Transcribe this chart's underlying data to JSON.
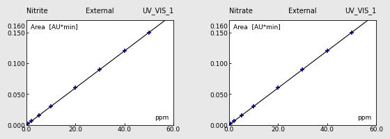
{
  "panels": [
    {
      "title1": "Nitrite",
      "title2": "External",
      "title3": "UV_VIS_1",
      "ylabel": "Area  [AU*min]",
      "xlabel": "ppm",
      "x_data": [
        0.5,
        2.0,
        5.0,
        10.0,
        20.0,
        30.0,
        40.0,
        50.0
      ],
      "slope": 0.003,
      "xlim": [
        0.0,
        60.0
      ],
      "ylim": [
        0.0,
        0.17
      ],
      "xticks": [
        0.0,
        20.0,
        40.0,
        60.0
      ],
      "yticks": [
        0.0,
        0.05,
        0.1,
        0.15
      ],
      "ytick_labels": [
        "0.000",
        "0.050",
        "0.100",
        "0.150"
      ],
      "y160_label": "0.160"
    },
    {
      "title1": "Nitrate",
      "title2": "External",
      "title3": "UV_VIS_1",
      "ylabel": "Area  [AU*min]",
      "xlabel": "ppm",
      "x_data": [
        0.5,
        2.0,
        5.0,
        10.0,
        20.0,
        30.0,
        40.0,
        50.0
      ],
      "slope": 0.003,
      "xlim": [
        0.0,
        60.0
      ],
      "ylim": [
        0.0,
        0.17
      ],
      "xticks": [
        0.0,
        20.0,
        40.0,
        60.0
      ],
      "yticks": [
        0.0,
        0.05,
        0.1,
        0.15
      ],
      "ytick_labels": [
        "0.000",
        "0.050",
        "0.100",
        "0.150"
      ],
      "y160_label": "0.160"
    }
  ],
  "marker_color": "#0000AA",
  "line_color": "#000000",
  "bg_color": "#e8e8e8",
  "plot_bg": "#ffffff",
  "marker": "+",
  "marker_size": 5,
  "marker_linewidth": 1.2,
  "line_style": "-",
  "line_width": 0.8,
  "font_size_title": 7.0,
  "font_size_axis": 6.5,
  "font_size_tick": 6.5
}
